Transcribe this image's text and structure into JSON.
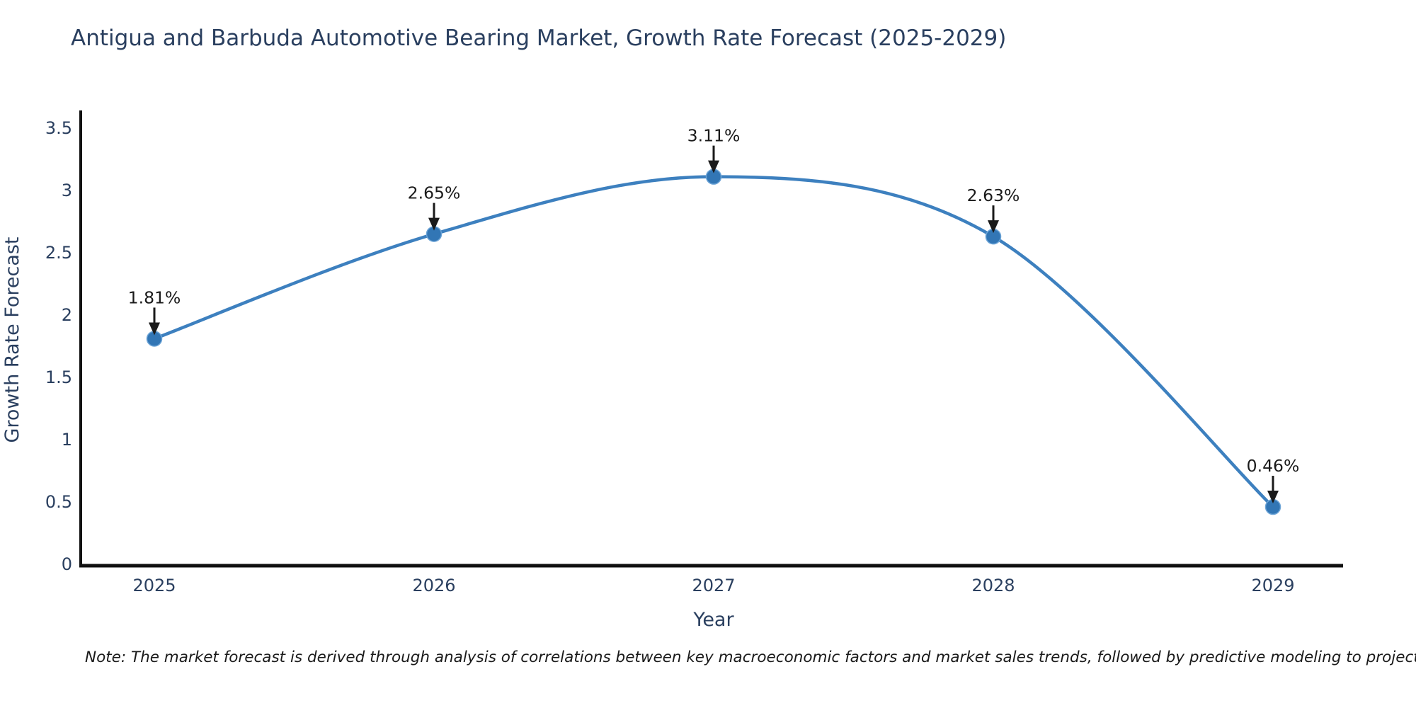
{
  "note": {
    "text": "Note: The market forecast is derived through analysis of correlations between key macroeconomic factors and market sales trends, followed by predictive modeling to project future sales"
  },
  "chart_data": {
    "type": "line",
    "title": "Antigua and Barbuda Automotive Bearing Market, Growth Rate Forecast (2025-2029)",
    "x": [
      2025,
      2026,
      2027,
      2028,
      2029
    ],
    "x_tick_labels": [
      "2025",
      "2026",
      "2027",
      "2028",
      "2029"
    ],
    "values": [
      1.81,
      2.65,
      3.11,
      2.63,
      0.46
    ],
    "point_labels": [
      "1.81%",
      "2.65%",
      "3.11%",
      "2.63%",
      "0.46%"
    ],
    "xlabel": "Year",
    "ylabel": "Growth Rate Forecast",
    "ylim": [
      0,
      3.5
    ],
    "y_ticks": [
      0,
      0.5,
      1,
      1.5,
      2,
      2.5,
      3,
      3.5
    ],
    "y_tick_labels": [
      "0",
      "0.5",
      "1",
      "1.5",
      "2",
      "2.5",
      "3",
      "3.5"
    ],
    "line_shape": "spline",
    "grid": false,
    "legend": false,
    "colors": {
      "line": "#3d80bf",
      "marker": "#3276b5",
      "marker_edge": "#6ba3d6",
      "axis_line": "#111111",
      "tick_text": "#2a3f5f",
      "annotation": "#1a1a1a",
      "title": "#2a3f5f"
    }
  }
}
